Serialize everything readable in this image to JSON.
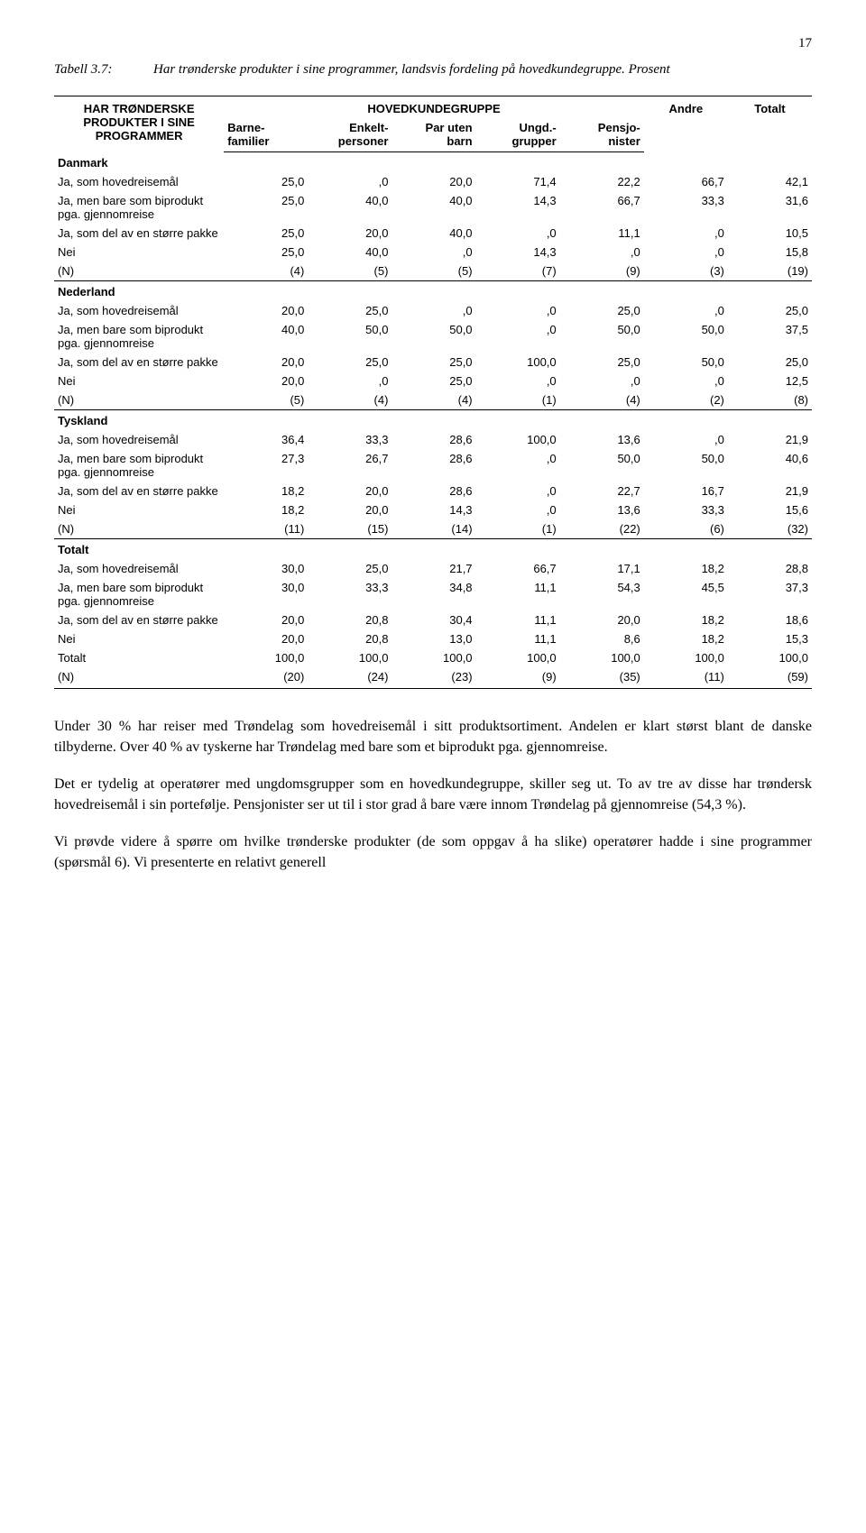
{
  "page_number": "17",
  "caption_label": "Tabell 3.7:",
  "caption_text": "Har trønderske produkter i sine programmer, landsvis fordeling på hovedkundegruppe. Prosent",
  "table": {
    "stub_header_lines": [
      "HAR TRØNDERSKE",
      "PRODUKTER I SINE",
      "PROGRAMMER"
    ],
    "super_header": "HOVEDKUNDEGRUPPE",
    "col_headers": [
      [
        "Barne-",
        "familier"
      ],
      [
        "Enkelt-",
        "personer"
      ],
      [
        "Par uten",
        "barn"
      ],
      [
        "Ungd.-",
        "grupper"
      ],
      [
        "Pensjo-",
        "nister"
      ],
      [
        "Andre"
      ],
      [
        "Totalt"
      ]
    ],
    "sections": [
      {
        "title": "Danmark",
        "rows": [
          {
            "label": "Ja, som hovedreisemål",
            "vals": [
              "25,0",
              ",0",
              "20,0",
              "71,4",
              "22,2",
              "66,7",
              "42,1"
            ]
          },
          {
            "label": "Ja, men bare som biprodukt pga. gjennomreise",
            "vals": [
              "25,0",
              "40,0",
              "40,0",
              "14,3",
              "66,7",
              "33,3",
              "31,6"
            ]
          },
          {
            "label": "Ja, som del av en større pakke",
            "vals": [
              "25,0",
              "20,0",
              "40,0",
              ",0",
              "11,1",
              ",0",
              "10,5"
            ]
          },
          {
            "label": "Nei",
            "vals": [
              "25,0",
              "40,0",
              ",0",
              "14,3",
              ",0",
              ",0",
              "15,8"
            ]
          },
          {
            "label": "(N)",
            "vals": [
              "(4)",
              "(5)",
              "(5)",
              "(7)",
              "(9)",
              "(3)",
              "(19)"
            ]
          }
        ]
      },
      {
        "title": "Nederland",
        "rows": [
          {
            "label": "Ja, som hovedreisemål",
            "vals": [
              "20,0",
              "25,0",
              ",0",
              ",0",
              "25,0",
              ",0",
              "25,0"
            ]
          },
          {
            "label": "Ja, men bare som biprodukt pga. gjennomreise",
            "vals": [
              "40,0",
              "50,0",
              "50,0",
              ",0",
              "50,0",
              "50,0",
              "37,5"
            ]
          },
          {
            "label": "Ja, som del av en større pakke",
            "vals": [
              "20,0",
              "25,0",
              "25,0",
              "100,0",
              "25,0",
              "50,0",
              "25,0"
            ]
          },
          {
            "label": "Nei",
            "vals": [
              "20,0",
              ",0",
              "25,0",
              ",0",
              ",0",
              ",0",
              "12,5"
            ]
          },
          {
            "label": "(N)",
            "vals": [
              "(5)",
              "(4)",
              "(4)",
              "(1)",
              "(4)",
              "(2)",
              "(8)"
            ]
          }
        ]
      },
      {
        "title": "Tyskland",
        "rows": [
          {
            "label": "Ja, som hovedreisemål",
            "vals": [
              "36,4",
              "33,3",
              "28,6",
              "100,0",
              "13,6",
              ",0",
              "21,9"
            ]
          },
          {
            "label": "Ja, men bare som biprodukt pga. gjennomreise",
            "vals": [
              "27,3",
              "26,7",
              "28,6",
              ",0",
              "50,0",
              "50,0",
              "40,6"
            ]
          },
          {
            "label": "Ja, som del av en større pakke",
            "vals": [
              "18,2",
              "20,0",
              "28,6",
              ",0",
              "22,7",
              "16,7",
              "21,9"
            ]
          },
          {
            "label": "Nei",
            "vals": [
              "18,2",
              "20,0",
              "14,3",
              ",0",
              "13,6",
              "33,3",
              "15,6"
            ]
          },
          {
            "label": "(N)",
            "vals": [
              "(11)",
              "(15)",
              "(14)",
              "(1)",
              "(22)",
              "(6)",
              "(32)"
            ]
          }
        ]
      },
      {
        "title": "Totalt",
        "rows": [
          {
            "label": "Ja, som hovedreisemål",
            "vals": [
              "30,0",
              "25,0",
              "21,7",
              "66,7",
              "17,1",
              "18,2",
              "28,8"
            ]
          },
          {
            "label": "Ja, men bare som biprodukt pga. gjennomreise",
            "vals": [
              "30,0",
              "33,3",
              "34,8",
              "11,1",
              "54,3",
              "45,5",
              "37,3"
            ]
          },
          {
            "label": "Ja, som del av en større pakke",
            "vals": [
              "20,0",
              "20,8",
              "30,4",
              "11,1",
              "20,0",
              "18,2",
              "18,6"
            ]
          },
          {
            "label": "Nei",
            "vals": [
              "20,0",
              "20,8",
              "13,0",
              "11,1",
              "8,6",
              "18,2",
              "15,3"
            ]
          },
          {
            "label": "Totalt",
            "vals": [
              "100,0",
              "100,0",
              "100,0",
              "100,0",
              "100,0",
              "100,0",
              "100,0"
            ]
          },
          {
            "label": "(N)",
            "vals": [
              "(20)",
              "(24)",
              "(23)",
              "(9)",
              "(35)",
              "(11)",
              "(59)"
            ]
          }
        ]
      }
    ]
  },
  "paragraphs": [
    "Under 30 % har reiser med Trøndelag som hovedreisemål i sitt produktsortiment. Andelen er klart størst blant de danske tilbyderne. Over 40 % av tyskerne har Trøndelag med bare som et biprodukt pga. gjennomreise.",
    "Det er tydelig at operatører med ungdomsgrupper som en hovedkundegruppe, skiller seg ut. To av tre av disse har trøndersk hovedreisemål i sin portefølje. Pensjonister ser ut til i stor grad å bare være innom Trøndelag på gjennomreise (54,3 %).",
    "Vi prøvde videre å spørre om hvilke trønderske produkter (de som oppgav å ha slike) operatører hadde i sine programmer (spørsmål 6). Vi presenterte en relativt generell"
  ]
}
